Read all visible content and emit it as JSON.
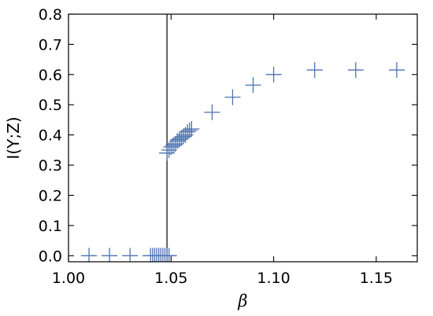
{
  "chart_data": {
    "type": "scatter",
    "marker": "plus",
    "color": "#4C72B0",
    "xlabel": "β",
    "ylabel": "I(Y;Z)",
    "xlim": [
      1.0,
      1.17
    ],
    "ylim": [
      -0.02,
      0.8
    ],
    "xticks": [
      1.0,
      1.05,
      1.1,
      1.15
    ],
    "xtick_labels": [
      "1.00",
      "1.05",
      "1.10",
      "1.15"
    ],
    "yticks": [
      0.0,
      0.1,
      0.2,
      0.3,
      0.4,
      0.5,
      0.6,
      0.7,
      0.8
    ],
    "ytick_labels": [
      "0.0",
      "0.1",
      "0.2",
      "0.3",
      "0.4",
      "0.5",
      "0.6",
      "0.7",
      "0.8"
    ],
    "grid": false,
    "vertical_line": {
      "x": 1.048,
      "color": "#000000"
    },
    "points": [
      {
        "x": 1.01,
        "y": 0.0
      },
      {
        "x": 1.02,
        "y": 0.0
      },
      {
        "x": 1.03,
        "y": 0.0
      },
      {
        "x": 1.04,
        "y": 0.0
      },
      {
        "x": 1.041,
        "y": 0.0
      },
      {
        "x": 1.042,
        "y": 0.0
      },
      {
        "x": 1.043,
        "y": 0.0
      },
      {
        "x": 1.044,
        "y": 0.0
      },
      {
        "x": 1.045,
        "y": 0.0
      },
      {
        "x": 1.046,
        "y": 0.0
      },
      {
        "x": 1.047,
        "y": 0.0
      },
      {
        "x": 1.048,
        "y": 0.0
      },
      {
        "x": 1.049,
        "y": 0.0
      },
      {
        "x": 1.048,
        "y": 0.34
      },
      {
        "x": 1.049,
        "y": 0.35
      },
      {
        "x": 1.05,
        "y": 0.36
      },
      {
        "x": 1.051,
        "y": 0.365
      },
      {
        "x": 1.052,
        "y": 0.37
      },
      {
        "x": 1.053,
        "y": 0.38
      },
      {
        "x": 1.054,
        "y": 0.385
      },
      {
        "x": 1.055,
        "y": 0.39
      },
      {
        "x": 1.056,
        "y": 0.395
      },
      {
        "x": 1.057,
        "y": 0.4
      },
      {
        "x": 1.058,
        "y": 0.41
      },
      {
        "x": 1.059,
        "y": 0.415
      },
      {
        "x": 1.06,
        "y": 0.42
      },
      {
        "x": 1.07,
        "y": 0.475
      },
      {
        "x": 1.08,
        "y": 0.525
      },
      {
        "x": 1.09,
        "y": 0.565
      },
      {
        "x": 1.1,
        "y": 0.6
      },
      {
        "x": 1.12,
        "y": 0.615
      },
      {
        "x": 1.14,
        "y": 0.615
      },
      {
        "x": 1.16,
        "y": 0.615
      }
    ]
  }
}
